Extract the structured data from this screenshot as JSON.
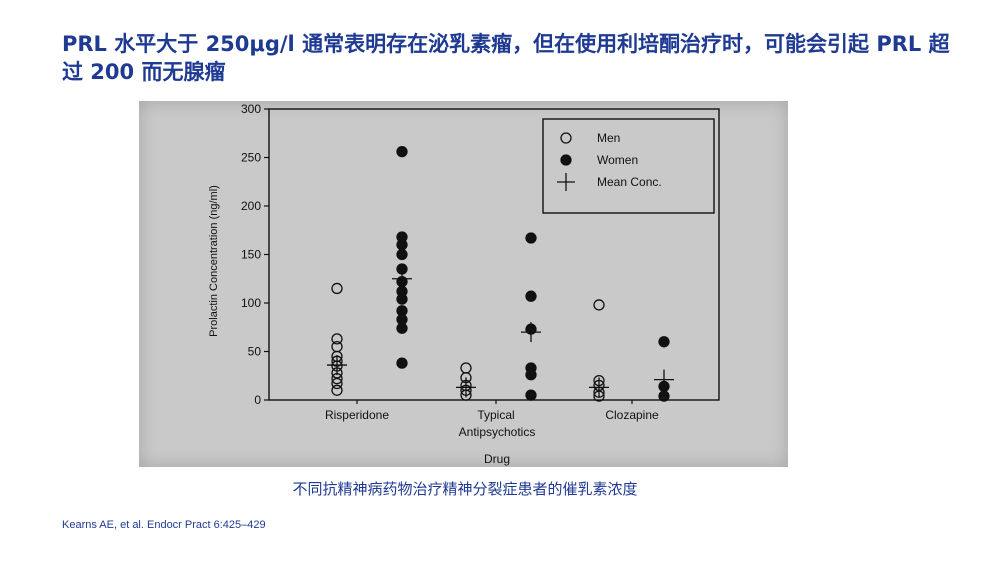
{
  "slide": {
    "title": "PRL 水平大于 250μg/l 通常表明存在泌乳素瘤，但在使用利培酮治疗时，可能会引起 PRL 超过 200 而无腺瘤",
    "caption": "不同抗精神病药物治疗精神分裂症患者的催乳素浓度",
    "citation": "Kearns AE, et al. Endocr Pract 6:425–429"
  },
  "chart_data": {
    "type": "scatter",
    "ylabel": "Prolactin Concentration (ng/ml)",
    "xlabel_line1": "Antipsychotics",
    "xlabel_line2": "Drug",
    "ylim": [
      0,
      300
    ],
    "yticks": [
      0,
      50,
      100,
      150,
      200,
      250,
      300
    ],
    "categories": [
      "Risperidone",
      "Typical",
      "Clozapine"
    ],
    "legend": {
      "position": "top-right",
      "entries": [
        "Men",
        "Women",
        "Mean Conc."
      ]
    },
    "series": [
      {
        "name": "Men",
        "marker": "open-circle",
        "points": [
          {
            "group": "Risperidone",
            "y": 115
          },
          {
            "group": "Risperidone",
            "y": 63
          },
          {
            "group": "Risperidone",
            "y": 55
          },
          {
            "group": "Risperidone",
            "y": 45
          },
          {
            "group": "Risperidone",
            "y": 40
          },
          {
            "group": "Risperidone",
            "y": 35
          },
          {
            "group": "Risperidone",
            "y": 28
          },
          {
            "group": "Risperidone",
            "y": 22
          },
          {
            "group": "Risperidone",
            "y": 17
          },
          {
            "group": "Risperidone",
            "y": 10
          },
          {
            "group": "Typical",
            "y": 33
          },
          {
            "group": "Typical",
            "y": 23
          },
          {
            "group": "Typical",
            "y": 15
          },
          {
            "group": "Typical",
            "y": 10
          },
          {
            "group": "Typical",
            "y": 5
          },
          {
            "group": "Clozapine",
            "y": 98
          },
          {
            "group": "Clozapine",
            "y": 20
          },
          {
            "group": "Clozapine",
            "y": 15
          },
          {
            "group": "Clozapine",
            "y": 8
          },
          {
            "group": "Clozapine",
            "y": 4
          }
        ]
      },
      {
        "name": "Women",
        "marker": "filled-circle",
        "points": [
          {
            "group": "Risperidone",
            "y": 256
          },
          {
            "group": "Risperidone",
            "y": 168
          },
          {
            "group": "Risperidone",
            "y": 160
          },
          {
            "group": "Risperidone",
            "y": 150
          },
          {
            "group": "Risperidone",
            "y": 135
          },
          {
            "group": "Risperidone",
            "y": 122
          },
          {
            "group": "Risperidone",
            "y": 112
          },
          {
            "group": "Risperidone",
            "y": 104
          },
          {
            "group": "Risperidone",
            "y": 92
          },
          {
            "group": "Risperidone",
            "y": 83
          },
          {
            "group": "Risperidone",
            "y": 74
          },
          {
            "group": "Risperidone",
            "y": 38
          },
          {
            "group": "Typical",
            "y": 167
          },
          {
            "group": "Typical",
            "y": 107
          },
          {
            "group": "Typical",
            "y": 73
          },
          {
            "group": "Typical",
            "y": 33
          },
          {
            "group": "Typical",
            "y": 26
          },
          {
            "group": "Typical",
            "y": 5
          },
          {
            "group": "Clozapine",
            "y": 60
          },
          {
            "group": "Clozapine",
            "y": 14
          },
          {
            "group": "Clozapine",
            "y": 4
          }
        ]
      },
      {
        "name": "Mean Conc.",
        "marker": "plus",
        "points": [
          {
            "group": "Risperidone",
            "y": 36
          },
          {
            "group": "Risperidone",
            "y": 125
          },
          {
            "group": "Typical",
            "y": 13
          },
          {
            "group": "Typical",
            "y": 70
          },
          {
            "group": "Clozapine",
            "y": 13
          },
          {
            "group": "Clozapine",
            "y": 21
          }
        ]
      }
    ]
  }
}
